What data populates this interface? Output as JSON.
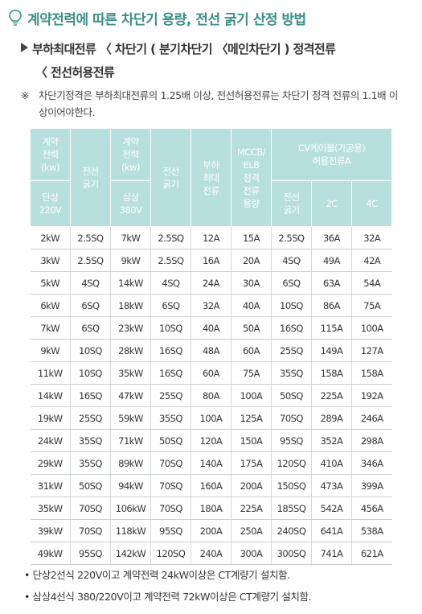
{
  "title": "계약전력에 따른 차단기 용량, 전선 굵기 산정 방법",
  "icons": {
    "title_icon": "lightbulb-icon",
    "bullet_icon": "triangle-right-icon"
  },
  "subtitle_line1": "부하최대전류 〈 차단기 ( 분기차단기 〈메인차단기 ) 정격전류",
  "subtitle_line2": "〈 전선허용전류",
  "note_mark": "※",
  "note_text": "차단기정격은 부하최대전류의 1.25배 이상, 전선허용전류는 차단기 정격 전류의 1.1배 이상이어야한다.",
  "table": {
    "header": {
      "contract_power_1": "계약\n전력\n(kw)",
      "phase_1": "단상\n220V",
      "wire_1": "전선\n굵기",
      "contract_power_2": "계약\n전력\n(kw)",
      "phase_2": "삼상\n380V",
      "wire_2": "전선\n굵기",
      "load_max_current": "부하\n최대\n전류",
      "mccb_elb": "MCCB/\nELB\n정격\n전류\n용량",
      "cv_cable": "CV케이블(가공용)\n허용전류A",
      "cv_wire": "전선\n굵기",
      "cv_2c": "2C",
      "cv_4c": "4C"
    },
    "rows": [
      [
        "2kW",
        "2.5SQ",
        "7kW",
        "2.5SQ",
        "12A",
        "15A",
        "2.5SQ",
        "36A",
        "32A"
      ],
      [
        "3kW",
        "2.5SQ",
        "9kW",
        "2.5SQ",
        "16A",
        "20A",
        "4SQ",
        "49A",
        "42A"
      ],
      [
        "5kW",
        "4SQ",
        "14kW",
        "4SQ",
        "24A",
        "30A",
        "6SQ",
        "63A",
        "54A"
      ],
      [
        "6kW",
        "6SQ",
        "18kW",
        "6SQ",
        "32A",
        "40A",
        "10SQ",
        "86A",
        "75A"
      ],
      [
        "7kW",
        "6SQ",
        "23kW",
        "10SQ",
        "40A",
        "50A",
        "16SQ",
        "115A",
        "100A"
      ],
      [
        "9kW",
        "10SQ",
        "28kW",
        "16SQ",
        "48A",
        "60A",
        "25SQ",
        "149A",
        "127A"
      ],
      [
        "11kW",
        "10SQ",
        "35kW",
        "16SQ",
        "60A",
        "75A",
        "35SQ",
        "158A",
        "158A"
      ],
      [
        "14kW",
        "16SQ",
        "47kW",
        "25SQ",
        "80A",
        "100A",
        "50SQ",
        "225A",
        "192A"
      ],
      [
        "19kW",
        "25SQ",
        "59kW",
        "35SQ",
        "100A",
        "125A",
        "70SQ",
        "289A",
        "246A"
      ],
      [
        "24kW",
        "35SQ",
        "71kW",
        "50SQ",
        "120A",
        "150A",
        "95SQ",
        "352A",
        "298A"
      ],
      [
        "29kW",
        "35SQ",
        "89kW",
        "70SQ",
        "140A",
        "175A",
        "120SQ",
        "410A",
        "346A"
      ],
      [
        "31kW",
        "50SQ",
        "94kW",
        "70SQ",
        "160A",
        "200A",
        "150SQ",
        "473A",
        "399A"
      ],
      [
        "35kW",
        "70SQ",
        "106kW",
        "70SQ",
        "180A",
        "225A",
        "185SQ",
        "542A",
        "456A"
      ],
      [
        "39kW",
        "70SQ",
        "118kW",
        "95SQ",
        "200A",
        "250A",
        "240SQ",
        "641A",
        "538A"
      ],
      [
        "49kW",
        "95SQ",
        "142kW",
        "120SQ",
        "240A",
        "300A",
        "300SQ",
        "741A",
        "621A"
      ]
    ]
  },
  "footnotes": [
    "• 단상2선식 220V이고 계약전력 24kW이상은 CT계량기 설치함.",
    "• 삼상4선식 380/220V이고 계약전력 72kW이상은 CT계량기 설치함."
  ]
}
